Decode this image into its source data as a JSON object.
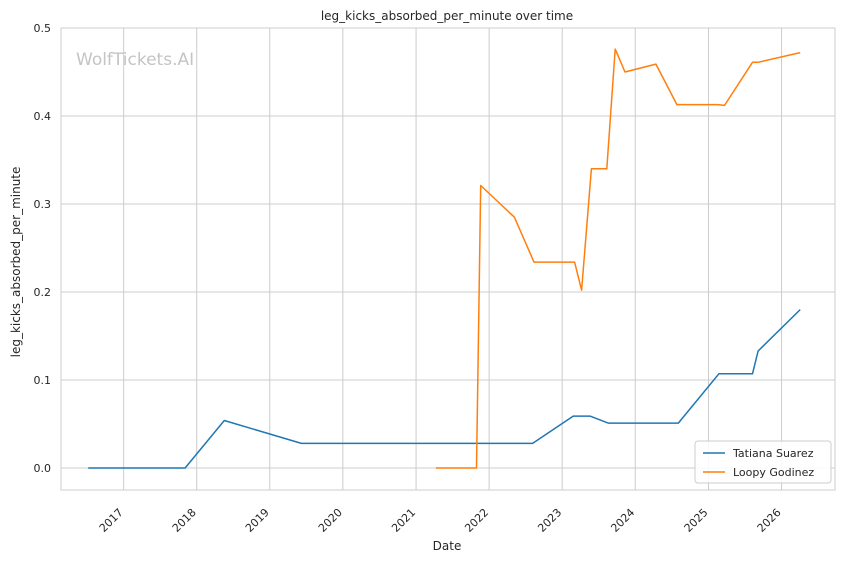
{
  "chart_data": {
    "type": "line",
    "title": "leg_kicks_absorbed_per_minute over time",
    "xlabel": "Date",
    "ylabel": "leg_kicks_absorbed_per_minute",
    "watermark": "WolfTickets.AI",
    "xlim": [
      "2016-02-23",
      "2026-09-25"
    ],
    "ylim": [
      -0.025,
      0.5
    ],
    "x_ticks": [
      "2017",
      "2018",
      "2019",
      "2020",
      "2021",
      "2022",
      "2023",
      "2024",
      "2025",
      "2026"
    ],
    "y_ticks": [
      "0.0",
      "0.1",
      "0.2",
      "0.3",
      "0.4",
      "0.5"
    ],
    "grid": true,
    "legend_position": "lower-right",
    "series": [
      {
        "name": "Tatiana Suarez",
        "color": "#1f77b4",
        "points": [
          [
            "2016-07-08",
            0.0
          ],
          [
            "2017-11-04",
            0.0
          ],
          [
            "2018-05-19",
            0.054
          ],
          [
            "2019-06-08",
            0.028
          ],
          [
            "2022-08-06",
            0.028
          ],
          [
            "2023-02-25",
            0.059
          ],
          [
            "2023-05-20",
            0.059
          ],
          [
            "2023-08-19",
            0.051
          ],
          [
            "2024-08-03",
            0.051
          ],
          [
            "2025-02-22",
            0.107
          ],
          [
            "2025-08-09",
            0.107
          ],
          [
            "2025-09-06",
            0.133
          ],
          [
            "2026-04-04",
            0.18
          ]
        ]
      },
      {
        "name": "Loopy Godinez",
        "color": "#ff7f0e",
        "points": [
          [
            "2021-04-10",
            0.0
          ],
          [
            "2021-10-30",
            0.0
          ],
          [
            "2021-11-20",
            0.321
          ],
          [
            "2022-05-07",
            0.285
          ],
          [
            "2022-08-13",
            0.234
          ],
          [
            "2023-03-04",
            0.234
          ],
          [
            "2023-04-08",
            0.202
          ],
          [
            "2023-05-27",
            0.34
          ],
          [
            "2023-08-12",
            0.34
          ],
          [
            "2023-09-23",
            0.476
          ],
          [
            "2023-11-11",
            0.45
          ],
          [
            "2024-04-13",
            0.459
          ],
          [
            "2024-07-27",
            0.413
          ],
          [
            "2025-02-15",
            0.413
          ],
          [
            "2025-03-22",
            0.412
          ],
          [
            "2025-08-09",
            0.461
          ],
          [
            "2025-09-06",
            0.461
          ],
          [
            "2026-04-04",
            0.472
          ]
        ]
      }
    ]
  }
}
